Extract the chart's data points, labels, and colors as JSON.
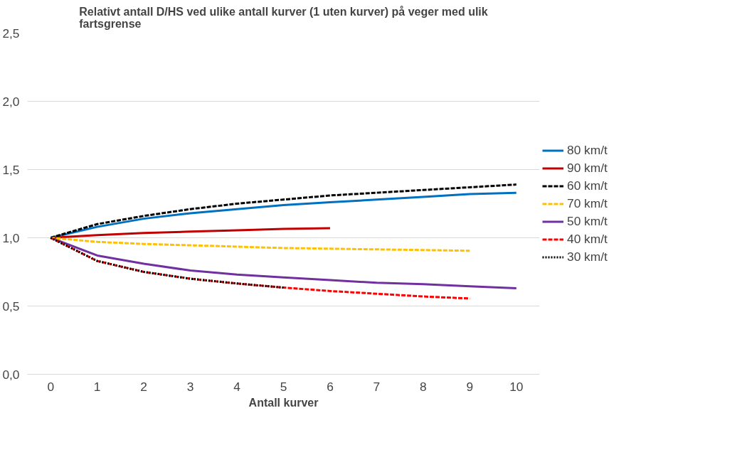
{
  "chart_data": {
    "type": "line",
    "title": "Relativt antall D/HS ved ulike antall kurver (1 uten kurver) på veger med ulik fartsgrense",
    "xlabel": "Antall kurver",
    "categories": [
      "0",
      "1",
      "2",
      "3",
      "4",
      "5",
      "6",
      "7",
      "8",
      "9",
      "10"
    ],
    "ylim": [
      0,
      2.5
    ],
    "yticks": [
      {
        "value": 0,
        "label": "0,0"
      },
      {
        "value": 0.5,
        "label": "0,5"
      },
      {
        "value": 1,
        "label": "1,0"
      },
      {
        "value": 1.5,
        "label": "1,5"
      },
      {
        "value": 2,
        "label": "2,0"
      },
      {
        "value": 2.5,
        "label": "2,5"
      }
    ],
    "grid": "y",
    "legend": "right",
    "marker": "none",
    "series": [
      {
        "name": "80 km/t",
        "color": "#0070c0",
        "line_style": "solid",
        "values": [
          1.0,
          1.08,
          1.14,
          1.18,
          1.21,
          1.24,
          1.26,
          1.28,
          1.3,
          1.32,
          1.33
        ]
      },
      {
        "name": "90 km/t",
        "color": "#c00000",
        "line_style": "solid",
        "values": [
          1.0,
          1.02,
          1.035,
          1.045,
          1.055,
          1.065,
          1.07,
          null,
          null,
          null,
          null
        ]
      },
      {
        "name": "60 km/t",
        "color": "#000000",
        "line_style": "dashed",
        "values": [
          1.0,
          1.1,
          1.16,
          1.21,
          1.25,
          1.28,
          1.31,
          1.33,
          1.35,
          1.37,
          1.39
        ]
      },
      {
        "name": "70 km/t",
        "color": "#ffc000",
        "line_style": "dashed",
        "values": [
          1.0,
          0.97,
          0.955,
          0.945,
          0.935,
          0.925,
          0.92,
          0.915,
          0.91,
          0.905,
          null
        ]
      },
      {
        "name": "50 km/t",
        "color": "#7030a0",
        "line_style": "solid",
        "values": [
          1.0,
          0.87,
          0.81,
          0.76,
          0.73,
          0.71,
          0.69,
          0.67,
          0.66,
          0.645,
          0.63
        ]
      },
      {
        "name": "40 km/t",
        "color": "#ff0000",
        "line_style": "dashed",
        "values": [
          1.0,
          0.83,
          0.75,
          0.7,
          0.665,
          0.635,
          0.61,
          0.59,
          0.57,
          0.555,
          null
        ]
      },
      {
        "name": "30 km/t",
        "color": "#000000",
        "line_style": "dotted",
        "values": [
          1.0,
          0.83,
          0.75,
          0.7,
          0.665,
          0.635,
          null,
          null,
          null,
          null,
          null
        ]
      }
    ]
  }
}
